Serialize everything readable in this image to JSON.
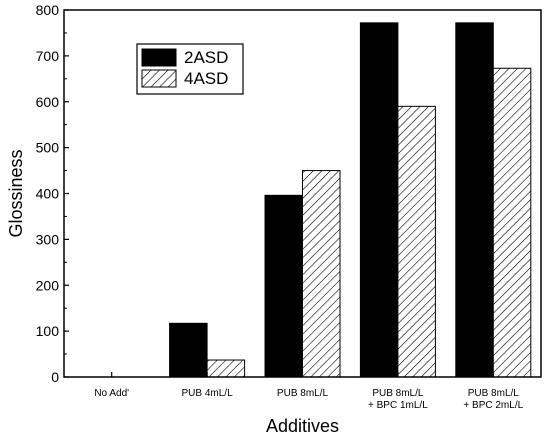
{
  "chart_data": {
    "type": "bar",
    "categories": [
      [
        "No Add'"
      ],
      [
        "PUB 4mL/L"
      ],
      [
        "PUB 8mL/L"
      ],
      [
        "PUB 8mL/L",
        "+ BPC 1mL/L"
      ],
      [
        "PUB 8mL/L",
        "+ BPC 2mL/L"
      ]
    ],
    "series": [
      {
        "name": "2ASD",
        "values": [
          0,
          117,
          396,
          772,
          772
        ],
        "fill": "solid",
        "color": "#000000"
      },
      {
        "name": "4ASD",
        "values": [
          0,
          37,
          450,
          590,
          673
        ],
        "fill": "hatched",
        "color": "#000000"
      }
    ],
    "xlabel": "Additives",
    "ylabel": "Glossiness",
    "ylim": [
      0,
      800
    ],
    "yticks": [
      0,
      100,
      200,
      300,
      400,
      500,
      600,
      700,
      800
    ],
    "grid": false,
    "legend_position": "top-left"
  }
}
